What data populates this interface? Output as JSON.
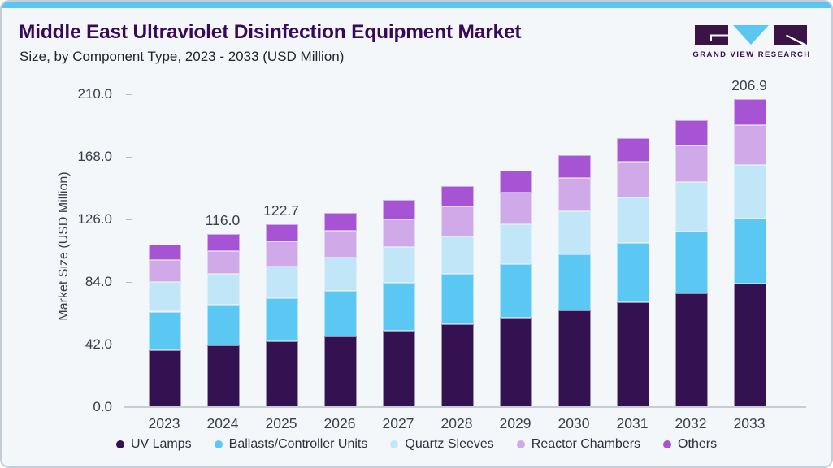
{
  "page": {
    "background": "#F3F7FA",
    "border_color": "#C4CDD5",
    "top_accent_color": "#5BC6F0"
  },
  "header": {
    "title": "Middle East Ultraviolet Disinfection Equipment Market",
    "subtitle": "Size, by Component Type, 2023 - 2033 (USD Million)"
  },
  "logo": {
    "text": "GRAND VIEW RESEARCH",
    "square_color": "#3A1445",
    "triangle_color": "#5BC6F0"
  },
  "chart_data": {
    "type": "bar",
    "stacked": true,
    "title": "Middle East Ultraviolet Disinfection Equipment Market Size, by Component Type, 2023 - 2033 (USD Million)",
    "xlabel": "",
    "ylabel": "Market Size (USD Million)",
    "ylim": [
      0,
      210
    ],
    "yticks": [
      "0.0",
      "42.0",
      "84.0",
      "126.0",
      "168.0",
      "210.0"
    ],
    "grid": false,
    "legend_position": "bottom",
    "categories": [
      "2023",
      "2024",
      "2025",
      "2026",
      "2027",
      "2028",
      "2029",
      "2030",
      "2031",
      "2032",
      "2033"
    ],
    "series": [
      {
        "name": "UV Lamps",
        "color": "#341150",
        "values": [
          38.3,
          41.4,
          44.2,
          47.5,
          51.3,
          55.5,
          60.0,
          64.9,
          70.4,
          76.3,
          82.7
        ]
      },
      {
        "name": "Ballasts/Controller Units",
        "color": "#5BC7F3",
        "values": [
          25.8,
          27.2,
          28.8,
          30.4,
          32.1,
          33.9,
          35.8,
          37.6,
          39.6,
          41.7,
          44.0
        ]
      },
      {
        "name": "Quartz Sleeves",
        "color": "#C0E6F8",
        "values": [
          19.7,
          20.6,
          21.6,
          22.7,
          23.9,
          25.3,
          26.9,
          28.7,
          30.7,
          33.0,
          36.1
        ]
      },
      {
        "name": "Reactor Chambers",
        "color": "#D0A9E9",
        "values": [
          14.8,
          15.6,
          16.6,
          17.7,
          18.9,
          20.1,
          21.4,
          22.8,
          23.8,
          24.9,
          26.7
        ]
      },
      {
        "name": "Others",
        "color": "#A653D4",
        "values": [
          10.3,
          11.2,
          11.5,
          12.2,
          12.9,
          13.6,
          14.4,
          15.2,
          16.1,
          16.9,
          17.4
        ]
      }
    ],
    "bar_value_labels": {
      "2024": "116.0",
      "2025": "122.7",
      "2033": "206.9"
    }
  }
}
